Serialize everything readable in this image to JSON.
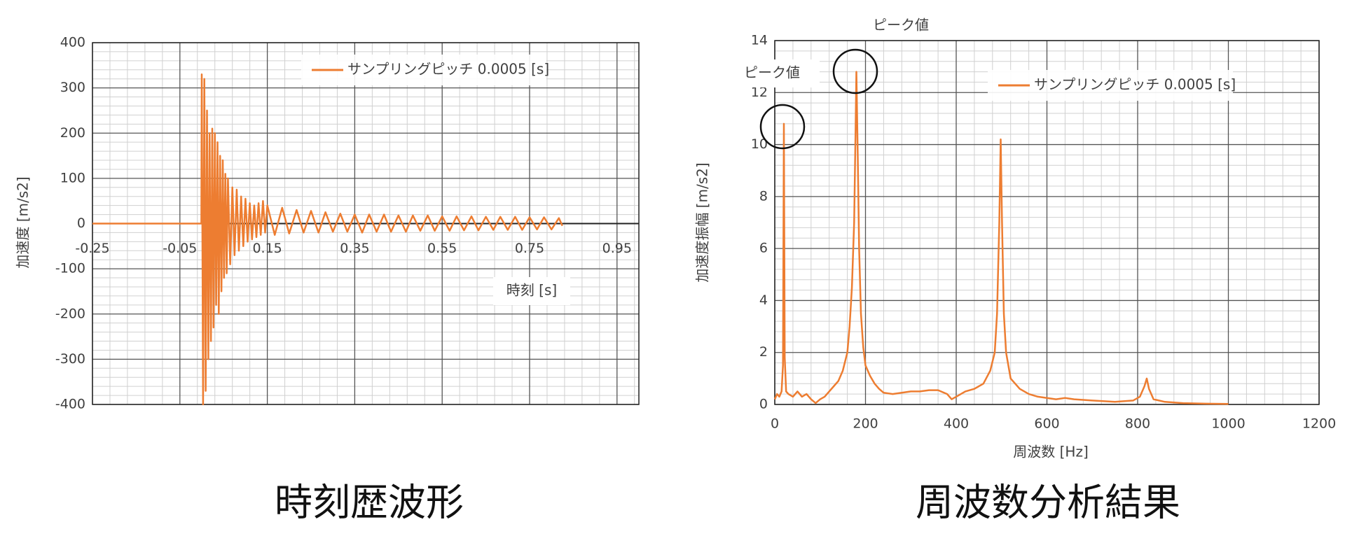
{
  "chart_data": [
    {
      "type": "line",
      "caption": "時刻歴波形",
      "x_label": "時刻 [s]",
      "y_label": "加速度 [m/s2]",
      "xlim": [
        -0.25,
        1.0
      ],
      "xticks": [
        -0.25,
        -0.05,
        0.15,
        0.35,
        0.55,
        0.75,
        0.95
      ],
      "ylim": [
        -400,
        400
      ],
      "yticks": [
        -400,
        -300,
        -200,
        -100,
        0,
        100,
        200,
        300,
        400
      ],
      "grid": true,
      "minor_divisions": 5,
      "legend": "upper right",
      "series": [
        {
          "name": "サンプリングピッチ 0.0005 [s]",
          "color": "#ed7d31",
          "x": [
            -0.25,
            -0.001,
            0.0,
            0.003,
            0.006,
            0.009,
            0.012,
            0.015,
            0.018,
            0.021,
            0.024,
            0.027,
            0.03,
            0.033,
            0.036,
            0.039,
            0.042,
            0.045,
            0.048,
            0.051,
            0.054,
            0.057,
            0.06,
            0.065,
            0.07,
            0.075,
            0.08,
            0.085,
            0.09,
            0.095,
            0.1,
            0.105,
            0.11,
            0.115,
            0.12,
            0.125,
            0.13,
            0.135,
            0.14,
            0.145,
            0.15,
            0.167,
            0.184,
            0.2,
            0.217,
            0.233,
            0.25,
            0.267,
            0.283,
            0.3,
            0.317,
            0.333,
            0.35,
            0.367,
            0.383,
            0.4,
            0.417,
            0.433,
            0.45,
            0.467,
            0.483,
            0.5,
            0.517,
            0.533,
            0.55,
            0.567,
            0.583,
            0.6,
            0.617,
            0.633,
            0.65,
            0.667,
            0.683,
            0.7,
            0.717,
            0.733,
            0.75,
            0.767,
            0.783,
            0.8,
            0.817,
            0.825
          ],
          "values": [
            0,
            0,
            330,
            -400,
            320,
            -370,
            250,
            -300,
            200,
            -260,
            210,
            -230,
            200,
            -180,
            180,
            -200,
            150,
            -150,
            140,
            -120,
            110,
            -110,
            100,
            -90,
            80,
            -70,
            75,
            -60,
            60,
            -50,
            55,
            -40,
            45,
            -35,
            40,
            -30,
            45,
            -25,
            50,
            -20,
            40,
            -25,
            35,
            -22,
            30,
            -20,
            28,
            -20,
            25,
            -18,
            22,
            -18,
            20,
            -20,
            20,
            -18,
            20,
            -18,
            18,
            -18,
            18,
            -16,
            18,
            -16,
            16,
            -16,
            16,
            -15,
            16,
            -15,
            15,
            -14,
            15,
            -14,
            15,
            -14,
            14,
            -13,
            14,
            -13,
            12,
            -5
          ]
        }
      ]
    },
    {
      "type": "line",
      "caption": "周波数分析結果",
      "x_label": "周波数 [Hz]",
      "y_label": "加速度振幅 [m/s2]",
      "annotations": [
        "ピーク値",
        "ピーク値"
      ],
      "xlim": [
        0,
        1200
      ],
      "xticks": [
        0,
        200,
        400,
        600,
        800,
        1000,
        1200
      ],
      "ylim": [
        0,
        14
      ],
      "yticks": [
        0,
        2,
        4,
        6,
        8,
        10,
        12,
        14
      ],
      "grid": true,
      "minor_divisions": 5,
      "legend": "upper right",
      "series": [
        {
          "name": "サンプリングピッチ 0.0005 [s]",
          "color": "#ed7d31",
          "x": [
            0,
            5,
            10,
            15,
            18,
            20,
            22,
            25,
            30,
            40,
            50,
            60,
            70,
            80,
            90,
            100,
            110,
            120,
            130,
            140,
            150,
            160,
            165,
            170,
            175,
            178,
            180,
            183,
            186,
            190,
            195,
            200,
            210,
            220,
            230,
            240,
            260,
            280,
            300,
            320,
            340,
            360,
            380,
            390,
            400,
            420,
            440,
            460,
            475,
            485,
            490,
            495,
            498,
            501,
            505,
            510,
            520,
            540,
            560,
            580,
            600,
            620,
            640,
            660,
            700,
            750,
            790,
            805,
            815,
            820,
            825,
            835,
            860,
            900,
            950,
            1000
          ],
          "values": [
            0.2,
            0.4,
            0.3,
            0.5,
            1.5,
            10.8,
            1.8,
            0.5,
            0.4,
            0.3,
            0.5,
            0.3,
            0.4,
            0.2,
            0.05,
            0.2,
            0.3,
            0.5,
            0.7,
            0.9,
            1.3,
            2.0,
            3.0,
            4.5,
            7.0,
            10.5,
            12.8,
            9.5,
            6.0,
            3.5,
            2.2,
            1.5,
            1.1,
            0.8,
            0.6,
            0.45,
            0.4,
            0.45,
            0.5,
            0.5,
            0.55,
            0.55,
            0.4,
            0.2,
            0.3,
            0.5,
            0.6,
            0.8,
            1.3,
            2.0,
            3.5,
            7.0,
            10.2,
            7.0,
            3.5,
            2.0,
            1.0,
            0.6,
            0.4,
            0.3,
            0.25,
            0.2,
            0.25,
            0.2,
            0.15,
            0.1,
            0.15,
            0.3,
            0.7,
            1.0,
            0.6,
            0.2,
            0.1,
            0.05,
            0.03,
            0.02
          ]
        }
      ]
    }
  ]
}
